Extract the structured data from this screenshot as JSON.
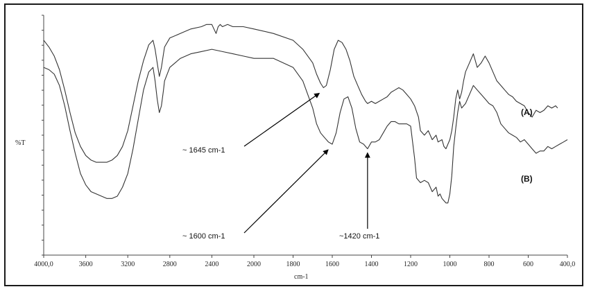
{
  "chart_data": {
    "type": "line",
    "title": "",
    "xlabel": "cm-1",
    "ylabel": "%T",
    "xlim": [
      4000,
      400
    ],
    "x_reversed": true,
    "grid": false,
    "x_ticks": [
      "4000,0",
      "3600",
      "3200",
      "2800",
      "2400",
      "2000",
      "1800",
      "1600",
      "1400",
      "1200",
      "1000",
      "800",
      "600",
      "400,0"
    ],
    "series": [
      {
        "name": "(A)",
        "x": [
          4000,
          3950,
          3900,
          3850,
          3800,
          3750,
          3700,
          3650,
          3600,
          3550,
          3500,
          3450,
          3400,
          3350,
          3300,
          3250,
          3200,
          3150,
          3100,
          3050,
          3000,
          2960,
          2940,
          2920,
          2900,
          2880,
          2860,
          2850,
          2800,
          2700,
          2600,
          2500,
          2450,
          2400,
          2380,
          2360,
          2340,
          2320,
          2300,
          2250,
          2200,
          2150,
          2100,
          2000,
          1900,
          1800,
          1750,
          1700,
          1680,
          1660,
          1645,
          1630,
          1610,
          1590,
          1570,
          1550,
          1530,
          1510,
          1490,
          1470,
          1450,
          1430,
          1420,
          1400,
          1380,
          1360,
          1340,
          1320,
          1300,
          1280,
          1260,
          1240,
          1220,
          1200,
          1180,
          1160,
          1150,
          1130,
          1110,
          1090,
          1070,
          1060,
          1040,
          1030,
          1020,
          1010,
          1000,
          990,
          980,
          970,
          960,
          950,
          940,
          930,
          920,
          900,
          880,
          860,
          840,
          820,
          800,
          780,
          760,
          740,
          720,
          700,
          680,
          660,
          640,
          620,
          600,
          580,
          560,
          540,
          520,
          500,
          480,
          460,
          450
        ],
        "values": [
          92,
          89,
          85,
          79,
          70,
          60,
          51,
          45,
          41,
          39,
          38,
          38,
          38,
          39,
          41,
          45,
          52,
          63,
          74,
          83,
          90,
          92,
          88,
          82,
          76,
          80,
          86,
          89,
          93,
          95,
          97,
          98,
          99,
          99,
          97,
          95,
          98,
          99,
          98,
          99,
          98,
          98,
          98,
          97,
          95,
          92,
          88,
          82,
          77,
          73,
          71,
          72,
          79,
          88,
          92,
          91,
          88,
          83,
          76,
          72,
          68,
          65,
          64,
          65,
          64,
          65,
          66,
          67,
          69,
          70,
          71,
          70,
          68,
          66,
          63,
          58,
          52,
          50,
          52,
          48,
          50,
          47,
          48,
          45,
          44,
          46,
          48,
          52,
          58,
          66,
          70,
          66,
          69,
          74,
          78,
          82,
          86,
          80,
          82,
          85,
          82,
          78,
          74,
          72,
          70,
          68,
          67,
          65,
          64,
          63,
          60,
          58,
          61,
          60,
          61,
          63,
          62,
          63,
          62
        ],
        "label_text": "(A)"
      },
      {
        "name": "(B)",
        "x": [
          4000,
          3950,
          3900,
          3850,
          3800,
          3750,
          3700,
          3650,
          3600,
          3550,
          3500,
          3450,
          3400,
          3350,
          3300,
          3250,
          3200,
          3150,
          3100,
          3050,
          3000,
          2960,
          2940,
          2920,
          2900,
          2880,
          2860,
          2850,
          2800,
          2700,
          2600,
          2500,
          2400,
          2300,
          2200,
          2100,
          2000,
          1900,
          1800,
          1750,
          1700,
          1680,
          1660,
          1640,
          1620,
          1600,
          1580,
          1560,
          1540,
          1520,
          1500,
          1480,
          1460,
          1440,
          1420,
          1400,
          1380,
          1360,
          1340,
          1320,
          1300,
          1280,
          1260,
          1240,
          1220,
          1200,
          1180,
          1170,
          1150,
          1130,
          1110,
          1090,
          1070,
          1060,
          1050,
          1040,
          1030,
          1020,
          1010,
          1000,
          990,
          980,
          970,
          960,
          950,
          940,
          920,
          900,
          880,
          860,
          840,
          820,
          800,
          780,
          760,
          740,
          720,
          700,
          680,
          660,
          640,
          620,
          600,
          580,
          560,
          540,
          520,
          500,
          480,
          460,
          440,
          420,
          400
        ],
        "values": [
          80,
          79,
          77,
          72,
          63,
          52,
          42,
          33,
          28,
          25,
          24,
          23,
          22,
          22,
          23,
          27,
          33,
          44,
          57,
          70,
          78,
          80,
          74,
          66,
          60,
          63,
          70,
          74,
          80,
          84,
          86,
          87,
          88,
          87,
          86,
          85,
          84,
          84,
          80,
          74,
          62,
          55,
          51,
          49,
          47,
          46,
          51,
          60,
          66,
          67,
          62,
          53,
          47,
          46,
          44,
          47,
          47,
          48,
          51,
          54,
          56,
          56,
          55,
          55,
          55,
          54,
          40,
          31,
          29,
          30,
          29,
          25,
          27,
          23,
          24,
          22,
          21,
          20,
          20,
          24,
          32,
          45,
          53,
          60,
          65,
          62,
          64,
          68,
          72,
          70,
          68,
          66,
          64,
          63,
          60,
          55,
          53,
          51,
          50,
          49,
          47,
          48,
          46,
          44,
          42,
          43,
          43,
          45,
          44,
          45,
          46,
          47,
          48
        ],
        "label_text": "(B)"
      }
    ],
    "annotations": [
      {
        "text": "~ 1645 cm-1",
        "points_to_x": 1645,
        "series": "(A)"
      },
      {
        "text": "~ 1600 cm-1",
        "points_to_x": 1600,
        "series": "(B)"
      },
      {
        "text": "~1420 cm-1",
        "points_to_x": 1420,
        "series": "(B)"
      }
    ]
  },
  "colors": {
    "line": "#333333",
    "arrow": "#000000",
    "border": "#1a1a1a"
  }
}
